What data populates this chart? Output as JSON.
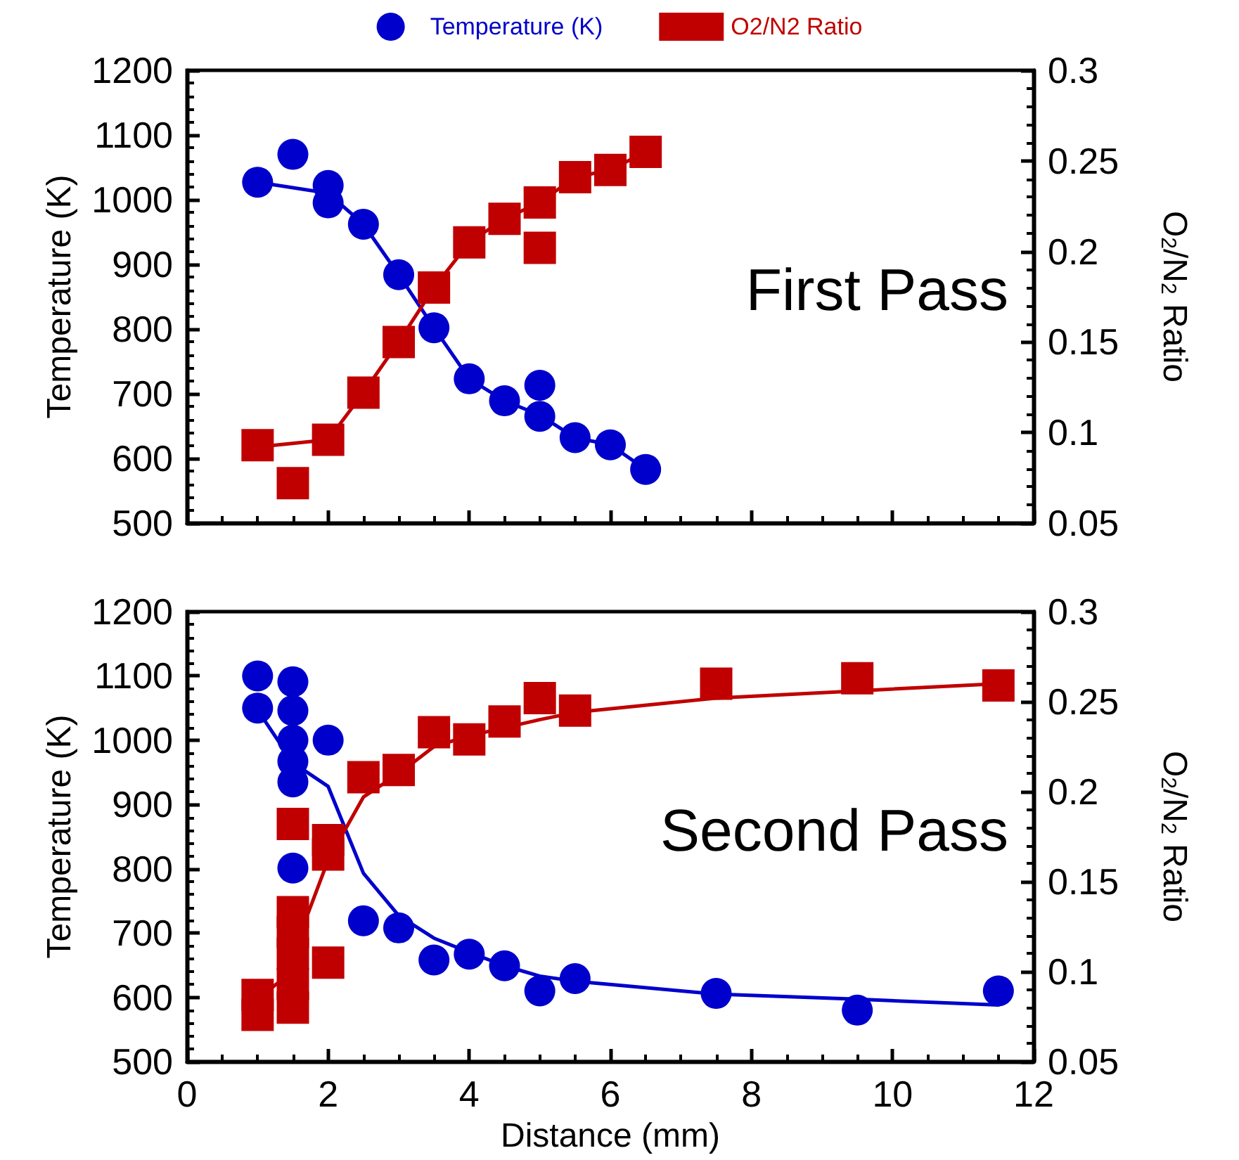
{
  "chart_data": [
    {
      "type": "scatter",
      "ylabel": "Temperature (K)",
      "y2label": "O$_{2}$/N$_{2}$ Ratio",
      "xlim": [
        0,
        12
      ],
      "xticks": [
        0,
        2,
        4,
        6,
        8,
        10,
        12
      ],
      "ylim": [
        500,
        1200
      ],
      "yticks": [
        500,
        600,
        700,
        800,
        900,
        1000,
        1100,
        1200
      ],
      "y2lim": [
        0.05,
        0.3
      ],
      "y2ticks": [
        0.05,
        0.1,
        0.15,
        0.2,
        0.25,
        0.3
      ],
      "tick_labels": "y",
      "legend": "top",
      "grid": false,
      "annotations": [
        "First Pass"
      ],
      "series": [
        {
          "type": "line",
          "color": "#0000cc",
          "marker": "none",
          "line_style": "solid",
          "x": [
            1,
            2,
            2.5,
            3,
            3.5,
            4,
            4.5,
            5,
            5.5,
            6,
            6.5
          ],
          "values": [
            1027,
            1010,
            962,
            884,
            802,
            723,
            689,
            667,
            632,
            621,
            583
          ]
        },
        {
          "type": "line",
          "color": "#c00000",
          "marker": "none",
          "line_style": "solid",
          "axis": "y2",
          "x": [
            1,
            2,
            2.5,
            3,
            3.5,
            4,
            4.5,
            5,
            5.5,
            6,
            6.5
          ],
          "values": [
            0.092,
            0.096,
            0.122,
            0.15,
            0.18,
            0.205,
            0.218,
            0.227,
            0.241,
            0.245,
            0.255
          ]
        },
        {
          "name": "Temperature (K)",
          "color": "#0000cc",
          "marker": "circle",
          "x": [
            1,
            1.5,
            2,
            2,
            2.5,
            3,
            3.5,
            4,
            4.5,
            5,
            5,
            5.5,
            6,
            6.5
          ],
          "values": [
            1027,
            1070,
            1022,
            995,
            962,
            884,
            802,
            723,
            689,
            713,
            665,
            632,
            621,
            583
          ]
        },
        {
          "name": "O2/N2 Ratio",
          "color": "#c00000",
          "marker": "square",
          "axis": "y2",
          "x": [
            1,
            1.5,
            2,
            2.5,
            3,
            3.5,
            4,
            4.5,
            5,
            5,
            5.5,
            6,
            6.5
          ],
          "values": [
            0.093,
            0.072,
            0.096,
            0.122,
            0.15,
            0.18,
            0.205,
            0.218,
            0.227,
            0.202,
            0.241,
            0.245,
            0.255
          ]
        }
      ]
    },
    {
      "type": "scatter",
      "xlabel": "Distance (mm)",
      "ylabel": "Temperature (K)",
      "y2label": "O$_{2}$/N$_{2}$ Ratio",
      "xlim": [
        0,
        12
      ],
      "xticks": [
        0,
        2,
        4,
        6,
        8,
        10,
        12
      ],
      "ylim": [
        500,
        1200
      ],
      "yticks": [
        500,
        600,
        700,
        800,
        900,
        1000,
        1100,
        1200
      ],
      "y2lim": [
        0.05,
        0.3
      ],
      "y2ticks": [
        0.05,
        0.1,
        0.15,
        0.2,
        0.25,
        0.3
      ],
      "legend": false,
      "grid": false,
      "annotations": [
        "Second Pass"
      ],
      "series": [
        {
          "type": "line",
          "color": "#0000cc",
          "marker": "none",
          "line_style": "solid",
          "x": [
            1,
            1.5,
            2,
            2.5,
            3,
            3.5,
            4,
            4.5,
            5,
            5.5,
            7.5,
            9.5,
            11.5
          ],
          "values": [
            1047,
            965,
            928,
            793,
            727,
            692,
            670,
            649,
            633,
            625,
            605,
            597,
            588
          ]
        },
        {
          "type": "line",
          "color": "#c00000",
          "marker": "none",
          "line_style": "solid",
          "axis": "y2",
          "x": [
            1,
            1.3,
            1.5,
            2,
            2.5,
            3,
            3.5,
            4,
            5,
            5.5,
            7.5,
            9.5,
            11.5
          ],
          "values": [
            0.085,
            0.094,
            0.11,
            0.162,
            0.197,
            0.21,
            0.225,
            0.231,
            0.24,
            0.244,
            0.252,
            0.256,
            0.26
          ]
        },
        {
          "color": "#0000cc",
          "marker": "circle",
          "x": [
            1,
            1,
            1.5,
            1.5,
            1.5,
            1.5,
            1.5,
            1.5,
            2,
            2.5,
            3,
            3.5,
            4,
            4.5,
            5,
            5.5,
            7.5,
            9.5,
            11.5
          ],
          "values": [
            1100,
            1050,
            1091,
            1046,
            1000,
            967,
            935,
            801,
            1000,
            719,
            708,
            658,
            667,
            649,
            610,
            629,
            606,
            580,
            610
          ]
        },
        {
          "color": "#c00000",
          "marker": "square",
          "axis": "y2",
          "x": [
            1,
            1,
            1.5,
            1.5,
            1.5,
            1.5,
            1.5,
            1.5,
            2,
            2,
            2,
            2.5,
            3,
            3.5,
            4,
            4.5,
            5,
            5.5,
            7.5,
            9.5,
            11.5
          ],
          "values": [
            0.087,
            0.076,
            0.182,
            0.133,
            0.122,
            0.11,
            0.093,
            0.08,
            0.165,
            0.173,
            0.105,
            0.208,
            0.212,
            0.233,
            0.229,
            0.239,
            0.252,
            0.245,
            0.26,
            0.263,
            0.259
          ]
        }
      ]
    }
  ]
}
